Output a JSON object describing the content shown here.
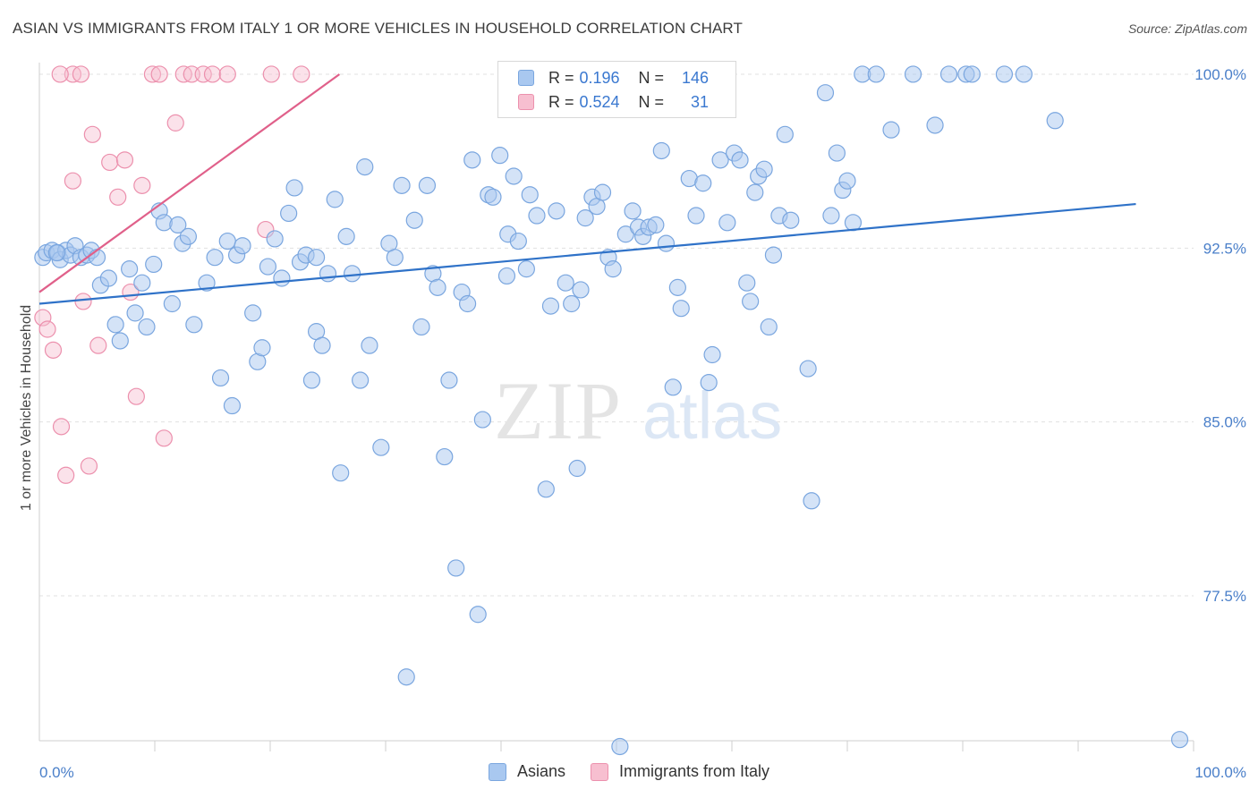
{
  "title": "ASIAN VS IMMIGRANTS FROM ITALY 1 OR MORE VEHICLES IN HOUSEHOLD CORRELATION CHART",
  "source": "Source: ZipAtlas.com",
  "colors": {
    "asian_fill": "#a9c8f0",
    "asian_stroke": "#7aa6df",
    "asian_line": "#2f72c8",
    "italy_fill": "#f7bfd0",
    "italy_stroke": "#ec90ad",
    "italy_line": "#e0608a"
  },
  "legend": {
    "asians": {
      "r_label": "R =",
      "r_value": "0.196",
      "n_label": "N =",
      "n_value": "146"
    },
    "italy": {
      "r_label": "R =",
      "r_value": "0.524",
      "n_label": "N =",
      "n_value": "31"
    }
  },
  "bottom_legend": {
    "asians": "Asians",
    "italy": "Immigrants from Italy"
  },
  "watermark": {
    "zip": "ZIP",
    "atlas": "atlas"
  },
  "chart_data": {
    "type": "scatter",
    "xlabel": "",
    "ylabel": "1 or more Vehicles in Household",
    "xlim": [
      0,
      100
    ],
    "ylim": [
      71.25,
      100.5
    ],
    "x_tick_labels": [
      "0.0%",
      "100.0%"
    ],
    "y_ticks": [
      77.5,
      85.0,
      92.5,
      100.0
    ],
    "y_tick_labels": [
      "77.5%",
      "85.0%",
      "92.5%",
      "100.0%"
    ],
    "grid": true,
    "series": [
      {
        "name": "Asians",
        "r": 0.196,
        "n": 146,
        "trend": {
          "x": [
            0,
            95
          ],
          "y": [
            90.1,
            94.4
          ]
        },
        "points": [
          [
            0.3,
            92.1
          ],
          [
            0.6,
            92.3
          ],
          [
            1.1,
            92.4
          ],
          [
            1.6,
            92.3
          ],
          [
            1.8,
            92.0
          ],
          [
            2.3,
            92.4
          ],
          [
            2.7,
            92.2
          ],
          [
            3.1,
            92.6
          ],
          [
            3.6,
            92.1
          ],
          [
            4.1,
            92.2
          ],
          [
            4.5,
            92.4
          ],
          [
            5.0,
            92.1
          ],
          [
            5.3,
            90.9
          ],
          [
            6.0,
            91.2
          ],
          [
            6.6,
            89.2
          ],
          [
            7.0,
            88.5
          ],
          [
            7.8,
            91.6
          ],
          [
            8.3,
            89.7
          ],
          [
            8.9,
            91.0
          ],
          [
            9.3,
            89.1
          ],
          [
            9.9,
            91.8
          ],
          [
            10.4,
            94.1
          ],
          [
            10.8,
            93.6
          ],
          [
            11.5,
            90.1
          ],
          [
            12.0,
            93.5
          ],
          [
            12.4,
            92.7
          ],
          [
            12.9,
            93.0
          ],
          [
            13.4,
            89.2
          ],
          [
            14.5,
            91.0
          ],
          [
            15.2,
            92.1
          ],
          [
            15.7,
            86.9
          ],
          [
            16.3,
            92.8
          ],
          [
            16.7,
            85.7
          ],
          [
            17.1,
            92.2
          ],
          [
            17.6,
            92.6
          ],
          [
            18.5,
            89.7
          ],
          [
            18.9,
            87.6
          ],
          [
            19.3,
            88.2
          ],
          [
            19.8,
            91.7
          ],
          [
            20.4,
            92.9
          ],
          [
            21.0,
            91.2
          ],
          [
            21.6,
            94.0
          ],
          [
            22.1,
            95.1
          ],
          [
            22.6,
            91.9
          ],
          [
            23.1,
            92.2
          ],
          [
            23.6,
            86.8
          ],
          [
            24.0,
            88.9
          ],
          [
            24.5,
            88.3
          ],
          [
            25.0,
            91.4
          ],
          [
            25.6,
            94.6
          ],
          [
            26.1,
            82.8
          ],
          [
            26.6,
            93.0
          ],
          [
            27.1,
            91.4
          ],
          [
            27.8,
            86.8
          ],
          [
            28.2,
            96.0
          ],
          [
            28.6,
            88.3
          ],
          [
            29.6,
            83.9
          ],
          [
            30.3,
            92.7
          ],
          [
            30.8,
            92.1
          ],
          [
            31.4,
            95.2
          ],
          [
            31.8,
            74.0
          ],
          [
            32.5,
            93.7
          ],
          [
            33.1,
            89.1
          ],
          [
            33.6,
            95.2
          ],
          [
            34.1,
            91.4
          ],
          [
            34.5,
            90.8
          ],
          [
            35.1,
            83.5
          ],
          [
            35.5,
            86.8
          ],
          [
            36.1,
            78.7
          ],
          [
            36.6,
            90.6
          ],
          [
            37.1,
            90.1
          ],
          [
            37.5,
            96.3
          ],
          [
            38.0,
            76.7
          ],
          [
            38.4,
            85.1
          ],
          [
            38.9,
            94.8
          ],
          [
            39.3,
            94.7
          ],
          [
            39.9,
            96.5
          ],
          [
            40.6,
            93.1
          ],
          [
            41.1,
            95.6
          ],
          [
            41.5,
            92.8
          ],
          [
            42.2,
            91.6
          ],
          [
            42.5,
            94.8
          ],
          [
            43.1,
            93.9
          ],
          [
            43.9,
            82.1
          ],
          [
            44.3,
            90.0
          ],
          [
            44.8,
            94.1
          ],
          [
            45.6,
            91.0
          ],
          [
            46.1,
            90.1
          ],
          [
            46.6,
            83.0
          ],
          [
            46.9,
            90.7
          ],
          [
            47.3,
            93.8
          ],
          [
            47.9,
            94.7
          ],
          [
            48.3,
            94.3
          ],
          [
            48.8,
            94.9
          ],
          [
            49.3,
            92.1
          ],
          [
            49.7,
            91.6
          ],
          [
            50.3,
            71.0
          ],
          [
            50.8,
            93.1
          ],
          [
            51.4,
            94.1
          ],
          [
            51.9,
            93.4
          ],
          [
            52.3,
            93.0
          ],
          [
            52.8,
            93.4
          ],
          [
            53.4,
            93.5
          ],
          [
            53.9,
            96.7
          ],
          [
            54.3,
            92.7
          ],
          [
            54.9,
            86.5
          ],
          [
            55.3,
            90.8
          ],
          [
            55.6,
            89.9
          ],
          [
            56.3,
            95.5
          ],
          [
            56.9,
            93.9
          ],
          [
            57.5,
            95.3
          ],
          [
            58.0,
            86.7
          ],
          [
            58.3,
            87.9
          ],
          [
            59.0,
            96.3
          ],
          [
            59.6,
            93.6
          ],
          [
            60.2,
            96.6
          ],
          [
            60.7,
            96.3
          ],
          [
            61.3,
            91.0
          ],
          [
            61.6,
            90.2
          ],
          [
            62.0,
            94.9
          ],
          [
            62.3,
            95.6
          ],
          [
            62.8,
            95.9
          ],
          [
            63.2,
            89.1
          ],
          [
            63.6,
            92.2
          ],
          [
            64.1,
            93.9
          ],
          [
            64.6,
            97.4
          ],
          [
            65.1,
            93.7
          ],
          [
            66.6,
            87.3
          ],
          [
            66.9,
            81.6
          ],
          [
            68.1,
            99.2
          ],
          [
            68.6,
            93.9
          ],
          [
            69.1,
            96.6
          ],
          [
            69.6,
            95.0
          ],
          [
            70.0,
            95.4
          ],
          [
            70.5,
            93.6
          ],
          [
            71.3,
            100.0
          ],
          [
            72.5,
            100.0
          ],
          [
            73.8,
            97.6
          ],
          [
            75.7,
            100.0
          ],
          [
            77.6,
            97.8
          ],
          [
            78.8,
            100.0
          ],
          [
            80.3,
            100.0
          ],
          [
            80.8,
            100.0
          ],
          [
            83.6,
            100.0
          ],
          [
            85.3,
            100.0
          ],
          [
            88.0,
            98.0
          ],
          [
            1.5,
            92.3
          ],
          [
            24.0,
            92.1
          ],
          [
            40.5,
            91.3
          ],
          [
            98.8,
            71.3
          ]
        ]
      },
      {
        "name": "Immigrants from Italy",
        "r": 0.524,
        "n": 31,
        "trend": {
          "x": [
            0,
            26
          ],
          "y": [
            90.6,
            100.0
          ]
        },
        "points": [
          [
            0.3,
            89.5
          ],
          [
            0.7,
            89.0
          ],
          [
            1.2,
            88.1
          ],
          [
            1.9,
            84.8
          ],
          [
            2.3,
            82.7
          ],
          [
            2.9,
            95.4
          ],
          [
            3.8,
            90.2
          ],
          [
            4.3,
            83.1
          ],
          [
            4.6,
            97.4
          ],
          [
            5.1,
            88.3
          ],
          [
            6.1,
            96.2
          ],
          [
            6.8,
            94.7
          ],
          [
            7.4,
            96.3
          ],
          [
            7.9,
            90.6
          ],
          [
            8.4,
            86.1
          ],
          [
            8.9,
            95.2
          ],
          [
            9.8,
            100.0
          ],
          [
            10.4,
            100.0
          ],
          [
            10.8,
            84.3
          ],
          [
            11.8,
            97.9
          ],
          [
            12.5,
            100.0
          ],
          [
            13.2,
            100.0
          ],
          [
            14.2,
            100.0
          ],
          [
            15.0,
            100.0
          ],
          [
            16.3,
            100.0
          ],
          [
            19.6,
            93.3
          ],
          [
            20.1,
            100.0
          ],
          [
            22.7,
            100.0
          ],
          [
            2.9,
            100.0
          ],
          [
            3.6,
            100.0
          ],
          [
            1.8,
            100.0
          ]
        ]
      }
    ]
  }
}
